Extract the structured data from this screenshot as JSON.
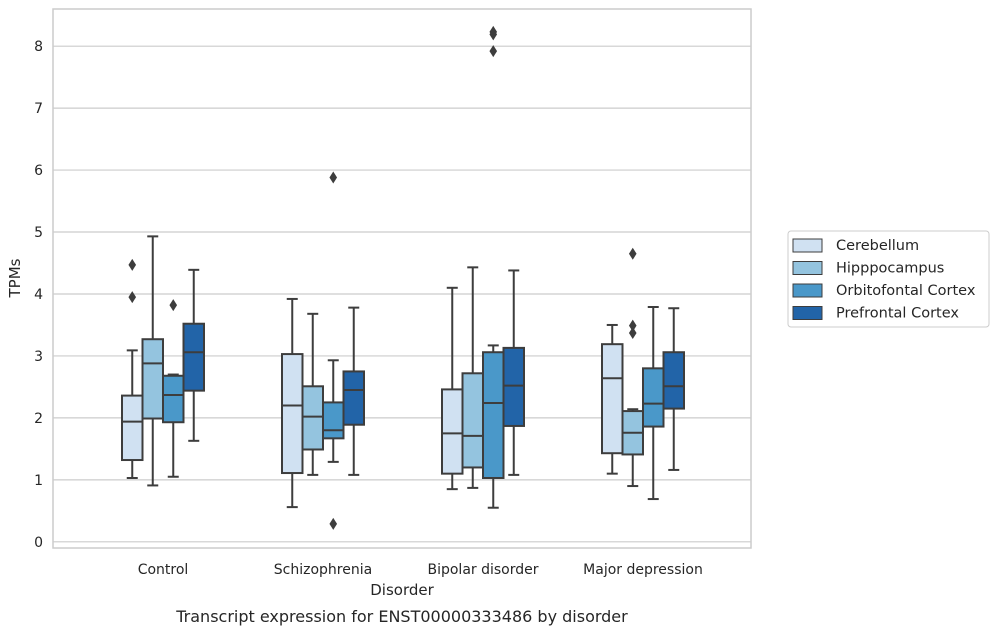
{
  "chart_data": {
    "type": "boxplot",
    "xlabel": "Disorder",
    "ylabel": "TPMs",
    "caption": "Transcript expression for ENST00000333486 by disorder",
    "ylim": [
      -0.1,
      8.6
    ],
    "yticks": [
      0,
      1,
      2,
      3,
      4,
      5,
      6,
      7,
      8
    ],
    "grid": "horizontal",
    "legend_position": "right",
    "categories": [
      "Control",
      "Schizophrenia",
      "Bipolar disorder",
      "Major depression"
    ],
    "series": [
      {
        "name": "Cerebellum",
        "color": "#d0e1f2",
        "boxes": [
          {
            "whisker_low": 1.03,
            "q1": 1.32,
            "median": 1.94,
            "q3": 2.36,
            "whisker_high": 3.09,
            "outliers": [
              3.95,
              4.47
            ]
          },
          {
            "whisker_low": 0.56,
            "q1": 1.11,
            "median": 2.2,
            "q3": 3.03,
            "whisker_high": 3.92,
            "outliers": []
          },
          {
            "whisker_low": 0.85,
            "q1": 1.1,
            "median": 1.75,
            "q3": 2.46,
            "whisker_high": 4.1,
            "outliers": []
          },
          {
            "whisker_low": 1.1,
            "q1": 1.43,
            "median": 2.64,
            "q3": 3.19,
            "whisker_high": 3.5,
            "outliers": []
          }
        ]
      },
      {
        "name": "Hipppocampus",
        "color": "#94c4df",
        "boxes": [
          {
            "whisker_low": 0.91,
            "q1": 1.99,
            "median": 2.88,
            "q3": 3.27,
            "whisker_high": 4.93,
            "outliers": []
          },
          {
            "whisker_low": 1.08,
            "q1": 1.49,
            "median": 2.02,
            "q3": 2.51,
            "whisker_high": 3.68,
            "outliers": []
          },
          {
            "whisker_low": 0.87,
            "q1": 1.2,
            "median": 1.71,
            "q3": 2.72,
            "whisker_high": 4.43,
            "outliers": []
          },
          {
            "whisker_low": 0.9,
            "q1": 1.41,
            "median": 1.76,
            "q3": 2.11,
            "whisker_high": 2.14,
            "outliers": [
              3.37,
              3.49,
              4.65
            ]
          }
        ]
      },
      {
        "name": "Orbitofontal Cortex",
        "color": "#4a98c9",
        "boxes": [
          {
            "whisker_low": 1.05,
            "q1": 1.93,
            "median": 2.37,
            "q3": 2.68,
            "whisker_high": 2.7,
            "outliers": [
              3.82
            ]
          },
          {
            "whisker_low": 1.29,
            "q1": 1.67,
            "median": 1.8,
            "q3": 2.25,
            "whisker_high": 2.93,
            "outliers": [
              0.29,
              5.88
            ]
          },
          {
            "whisker_low": 0.55,
            "q1": 1.03,
            "median": 2.24,
            "q3": 3.06,
            "whisker_high": 3.17,
            "outliers": [
              7.92,
              8.19,
              8.23
            ]
          },
          {
            "whisker_low": 0.69,
            "q1": 1.86,
            "median": 2.23,
            "q3": 2.8,
            "whisker_high": 3.79,
            "outliers": []
          }
        ]
      },
      {
        "name": "Prefrontal Cortex",
        "color": "#2264a8",
        "boxes": [
          {
            "whisker_low": 1.63,
            "q1": 2.44,
            "median": 3.06,
            "q3": 3.52,
            "whisker_high": 4.39,
            "outliers": []
          },
          {
            "whisker_low": 1.08,
            "q1": 1.89,
            "median": 2.45,
            "q3": 2.75,
            "whisker_high": 3.78,
            "outliers": []
          },
          {
            "whisker_low": 1.08,
            "q1": 1.87,
            "median": 2.52,
            "q3": 3.13,
            "whisker_high": 4.38,
            "outliers": []
          },
          {
            "whisker_low": 1.16,
            "q1": 2.15,
            "median": 2.51,
            "q3": 3.06,
            "whisker_high": 3.77,
            "outliers": []
          }
        ]
      }
    ]
  }
}
